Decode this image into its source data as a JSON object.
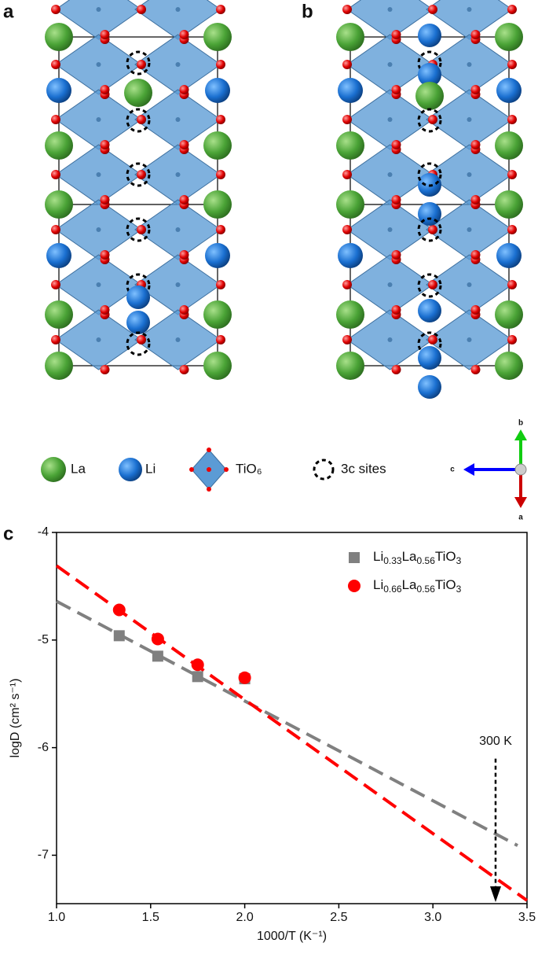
{
  "panels": [
    "a",
    "b",
    "c"
  ],
  "structure_legend": [
    "La",
    "Li",
    "TiO₆",
    "3c sites"
  ],
  "axes_triad": [
    "b",
    "c",
    "a"
  ],
  "chart_data": {
    "type": "scatter",
    "xlabel": "1000/T (K⁻¹)",
    "ylabel": "logD (cm² s⁻¹)",
    "xlim": [
      1.0,
      3.5
    ],
    "ylim": [
      -7.45,
      -4
    ],
    "xticks": [
      {
        "value": 1.0,
        "label": "1.0"
      },
      {
        "value": 1.5,
        "label": "1.5"
      },
      {
        "value": 2.0,
        "label": "2.0"
      },
      {
        "value": 2.5,
        "label": "2.5"
      },
      {
        "value": 3.0,
        "label": "3.0"
      },
      {
        "value": 3.5,
        "label": "3.5"
      }
    ],
    "yticks": [
      -4,
      -5,
      -6,
      -7
    ],
    "legend": "upper right",
    "series": [
      {
        "name": "Li0.33La0.56TiO3",
        "color": "#808080",
        "marker": "square",
        "x": [
          1.333,
          1.538,
          1.75,
          2.0
        ],
        "values": [
          -4.96,
          -5.15,
          -5.34,
          -5.36
        ],
        "fit_x": [
          1.0,
          3.45
        ],
        "fit_values": [
          -4.64,
          -6.91
        ]
      },
      {
        "name": "Li0.66La0.56TiO3",
        "color": "#ff0000",
        "marker": "circle",
        "x": [
          1.333,
          1.538,
          1.75,
          2.0
        ],
        "values": [
          -4.72,
          -4.99,
          -5.23,
          -5.35
        ],
        "fit_x": [
          1.0,
          3.5
        ],
        "fit_values": [
          -4.31,
          -7.42
        ]
      }
    ],
    "annotation": {
      "text": "300 K",
      "x": 3.333,
      "y": -6.0
    }
  }
}
